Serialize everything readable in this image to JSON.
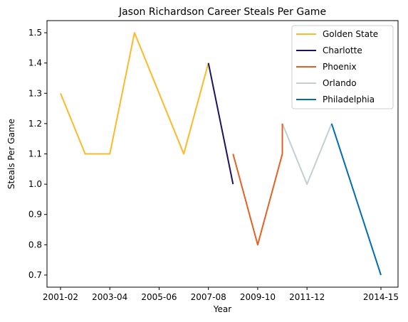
{
  "chart_data": {
    "type": "line",
    "title": "Jason Richardson Career Steals Per Game",
    "xlabel": "Year",
    "ylabel": "Steals Per Game",
    "x_tick_labels": [
      "2001-02",
      "2003-04",
      "2005-06",
      "2007-08",
      "2009-10",
      "2011-12",
      "2014-15"
    ],
    "y_ticks": [
      0.7,
      0.8,
      0.9,
      1.0,
      1.1,
      1.2,
      1.3,
      1.4,
      1.5
    ],
    "y_tick_labels": [
      "0.7",
      "0.8",
      "0.9",
      "1.0",
      "1.1",
      "1.2",
      "1.3",
      "1.4",
      "1.5"
    ],
    "ylim": [
      0.66,
      1.54
    ],
    "grid": false,
    "legend_position": "top-right",
    "series": [
      {
        "name": "Golden State",
        "color": "#FDB927",
        "x": [
          "2001-02",
          "2002-03",
          "2003-04",
          "2004-05",
          "2005-06",
          "2006-07",
          "2007-08"
        ],
        "values": [
          1.3,
          1.1,
          1.1,
          1.5,
          1.3,
          1.1,
          1.4
        ]
      },
      {
        "name": "Charlotte",
        "color": "#1D1160",
        "x": [
          "2007-08",
          "2008-09"
        ],
        "values": [
          1.4,
          1.0
        ]
      },
      {
        "name": "Phoenix",
        "color": "#E56020",
        "x": [
          "2008-09",
          "2009-10",
          "2010-11"
        ],
        "values": [
          1.1,
          0.8,
          1.1
        ]
      },
      {
        "name": "Orlando",
        "color": "#C4CED4",
        "x": [
          "2010-11",
          "2011-12",
          "2012-13"
        ],
        "values": [
          1.2,
          1.0,
          1.2
        ]
      },
      {
        "name": "Philadelphia",
        "color": "#006BB6",
        "x": [
          "2012-13",
          "2014-15"
        ],
        "values": [
          1.2,
          0.7
        ]
      }
    ],
    "extra_segments": [
      {
        "series": "Phoenix",
        "x": [
          "2010-11",
          "2010-11"
        ],
        "values": [
          1.1,
          1.2
        ]
      }
    ]
  }
}
